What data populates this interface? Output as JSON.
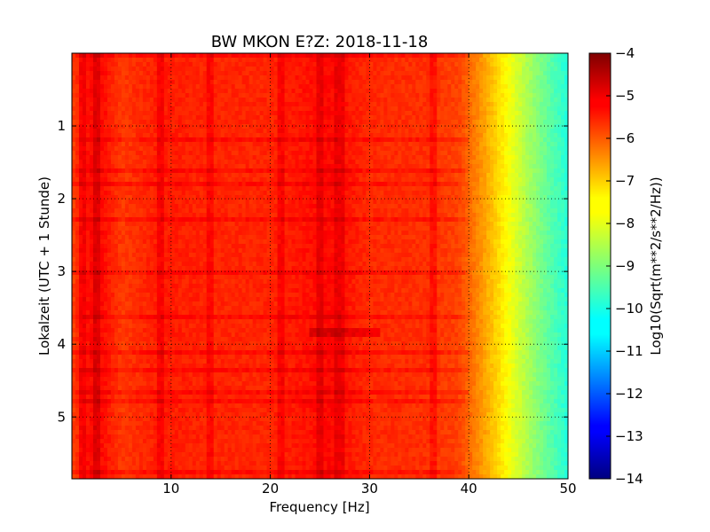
{
  "chart_data": {
    "type": "heatmap",
    "title": "BW MKON E?Z: 2018-11-18",
    "xlabel": "Frequency [Hz]",
    "ylabel": "Lokalzeit (UTC + 1 Stunde)",
    "colorbar_label": "Log10(Sqrt(m**2/s**2/Hz))",
    "colormap": "jet",
    "xlim": [
      0,
      50
    ],
    "ylim": [
      5.85,
      0
    ],
    "x_ticks": [
      10,
      20,
      30,
      40,
      50
    ],
    "y_ticks": [
      1,
      2,
      3,
      4,
      5
    ],
    "colorbar_range": [
      -14,
      -4
    ],
    "colorbar_ticks": [
      -4,
      -5,
      -6,
      -7,
      -8,
      -9,
      -10,
      -11,
      -12,
      -13,
      -14
    ],
    "grid": true,
    "approx_profile_freq_hz": [
      0,
      1,
      2.5,
      5,
      9,
      14,
      20,
      26,
      30,
      36,
      39,
      41,
      42.5,
      44,
      46,
      48,
      50
    ],
    "approx_profile_value": [
      -5.9,
      -5.5,
      -5.2,
      -5.8,
      -5.5,
      -5.6,
      -5.6,
      -5.3,
      -5.65,
      -5.7,
      -5.9,
      -6.6,
      -7.2,
      -7.8,
      -8.6,
      -9.3,
      -9.9
    ],
    "enhanced_bands_hz": [
      1.0,
      2.5,
      9.0,
      14.0,
      21.0,
      25.0,
      27.0,
      36.5
    ],
    "strongest_region": {
      "freq_hz": [
        24,
        31
      ],
      "time_h": [
        3.75,
        3.9
      ],
      "value": -4.9
    }
  }
}
